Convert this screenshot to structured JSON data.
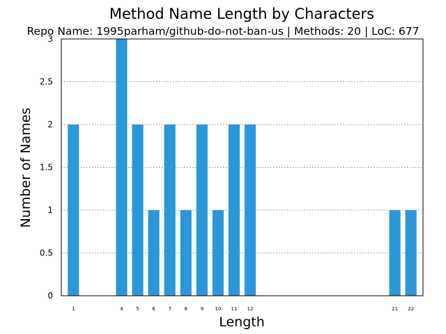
{
  "chart_data": {
    "type": "bar",
    "title": "Method Name Length by Characters",
    "subtitle": "Repo Name: 1995parham/github-do-not-ban-us | Methods: 20 | LoC: 677",
    "xlabel": "Length",
    "ylabel": "Number of Names",
    "categories": [
      1,
      4,
      5,
      6,
      7,
      8,
      9,
      10,
      11,
      12,
      21,
      22
    ],
    "values": [
      2,
      3,
      2,
      1,
      2,
      1,
      2,
      1,
      2,
      2,
      1,
      1
    ],
    "xlim": [
      0.25,
      22.75
    ],
    "ylim": [
      0,
      3
    ],
    "yticks": [
      0,
      0.5,
      1,
      1.5,
      2,
      2.5,
      3
    ],
    "ytick_labels": [
      "0",
      "0.5",
      "1",
      "1.5",
      "2",
      "2.5",
      "3"
    ],
    "grid": "horizontal dotted",
    "bar_color": "#2a98d8"
  }
}
